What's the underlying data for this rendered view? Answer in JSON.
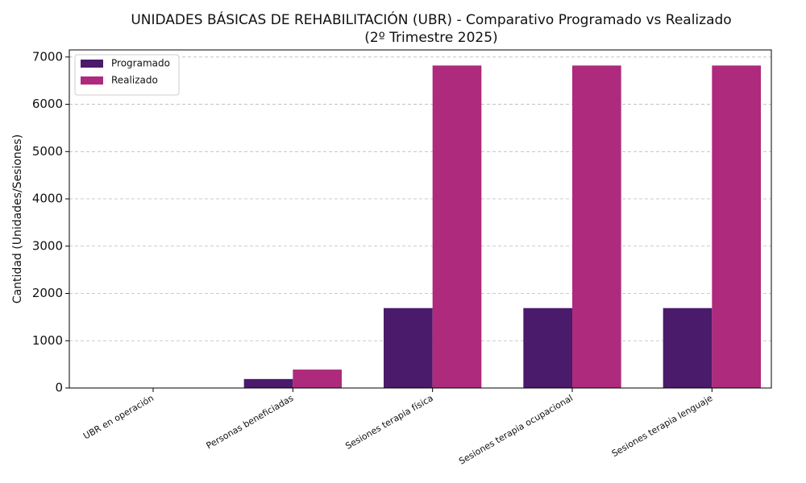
{
  "chart_data": {
    "type": "bar",
    "title": "UNIDADES BÁSICAS DE REHABILITACIÓN (UBR) - Comparativo Programado vs Realizado",
    "subtitle": "(2º Trimestre 2025)",
    "y_label": "Cantidad (Unidades/Sesiones)",
    "categories": [
      "UBR en operación",
      "Personas beneficiadas",
      "Sesiones terapia física",
      "Sesiones terapia ocupacional",
      "Sesiones terapia lenguaje"
    ],
    "series": [
      {
        "name": "Programado",
        "color": "#4a1a6b",
        "values": [
          1,
          190,
          1690,
          1690,
          1690
        ]
      },
      {
        "name": "Realizado",
        "color": "#ae2a7d",
        "values": [
          1,
          390,
          6820,
          6820,
          6820
        ]
      }
    ],
    "ylim": [
      0,
      7150
    ],
    "yticks": [
      0,
      1000,
      2000,
      3000,
      4000,
      5000,
      6000,
      7000
    ],
    "grid": true,
    "legend": "upper left"
  }
}
